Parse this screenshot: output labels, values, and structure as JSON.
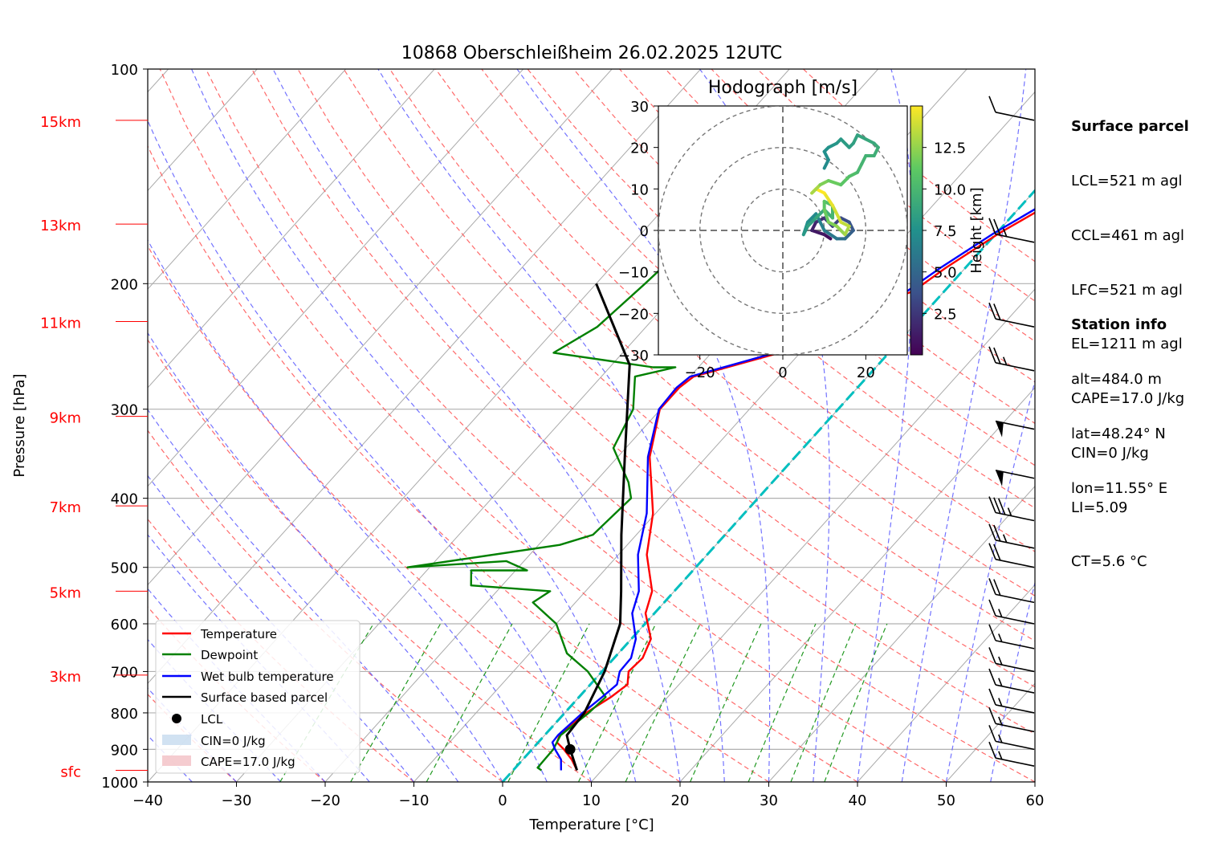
{
  "chart_data": {
    "type": "line",
    "title": "10868 Oberschleißheim 26.02.2025 12UTC",
    "xlabel": "Temperature [°C]",
    "ylabel": "Pressure [hPa]",
    "xlim": [
      -40,
      60
    ],
    "ylim": [
      1000,
      100
    ],
    "y_scale": "log",
    "x_ticks": [
      "−40",
      "−30",
      "−20",
      "−10",
      "0",
      "10",
      "20",
      "30",
      "40",
      "50",
      "60"
    ],
    "y_ticks": [
      {
        "p": 1000,
        "label": "1000"
      },
      {
        "p": 900,
        "label": "900"
      },
      {
        "p": 800,
        "label": "800"
      },
      {
        "p": 700,
        "label": "700"
      },
      {
        "p": 600,
        "label": "600"
      },
      {
        "p": 500,
        "label": "500"
      },
      {
        "p": 400,
        "label": "400"
      },
      {
        "p": 300,
        "label": "300"
      },
      {
        "p": 200,
        "label": "200"
      },
      {
        "p": 100,
        "label": "100"
      }
    ],
    "height_labels": [
      {
        "p": 963,
        "label": "sfc"
      },
      {
        "p": 708,
        "label": "3km"
      },
      {
        "p": 540,
        "label": "5km"
      },
      {
        "p": 410,
        "label": "7km"
      },
      {
        "p": 307,
        "label": "9km"
      },
      {
        "p": 226,
        "label": "11km"
      },
      {
        "p": 165,
        "label": "13km"
      },
      {
        "p": 118,
        "label": "15km"
      }
    ],
    "series": [
      {
        "name": "Temperature",
        "color": "#ff0000",
        "x": [
          7.2,
          5.5,
          3.6,
          2.1,
          1.7,
          2.4,
          3.6,
          4.2,
          3.0,
          3.2,
          2.2,
          -1.0,
          -2.5,
          -6.8,
          -10.3,
          -16.4,
          -20.1,
          -20.1,
          -19.6,
          -12.3,
          -11.0,
          -8.2,
          -3.5,
          -2.2,
          0.3,
          3.0,
          6.0,
          10.5,
          10.2
        ],
        "y": [
          963,
          930,
          900,
          880,
          860,
          800,
          760,
          730,
          700,
          670,
          630,
          580,
          540,
          480,
          420,
          350,
          300,
          280,
          270,
          250,
          237,
          220,
          205,
          190,
          170,
          155,
          140,
          122,
          118
        ]
      },
      {
        "name": "Dewpoint",
        "color": "#008000",
        "x": [
          3.2,
          2.5,
          2.4,
          2.1,
          1.8,
          2.7,
          3.0,
          -1.6,
          -5.8,
          -10.0,
          -14.8,
          -14.0,
          -23.5,
          -25.0,
          -18.7,
          -22.0,
          -32.5,
          -17.6,
          -14.9,
          -14.3,
          -16.2,
          -21.4,
          -23.1,
          -26.2,
          -22.6,
          -25.1,
          -37.8,
          -35.5,
          -34.5,
          -33.9,
          -29.6,
          -25.4,
          -22.4,
          -22.1
        ],
        "y": [
          963,
          955,
          900,
          880,
          860,
          800,
          760,
          700,
          660,
          600,
          560,
          540,
          530,
          505,
          505,
          490,
          500,
          465,
          450,
          400,
          380,
          340,
          300,
          270,
          262,
          262,
          250,
          230,
          200,
          180,
          160,
          135,
          118,
          117
        ]
      },
      {
        "name": "Wet bulb temperature",
        "color": "#0000ff",
        "x": [
          5.4,
          4.3,
          2.6,
          1.6,
          1.5,
          2.0,
          2.6,
          3.0,
          2.0,
          1.9,
          0.5,
          -2.5,
          -4.0,
          -7.8,
          -11.0,
          -16.6,
          -20.2,
          -20.4,
          -20.0,
          -12.8,
          -11.4,
          -8.9,
          -4.2,
          -2.8,
          -0.3,
          2.3,
          5.5,
          10.2,
          9.9
        ],
        "y": [
          963,
          930,
          900,
          880,
          860,
          800,
          760,
          730,
          700,
          670,
          630,
          580,
          540,
          480,
          420,
          350,
          300,
          280,
          270,
          250,
          237,
          220,
          205,
          190,
          170,
          155,
          140,
          122,
          118
        ]
      },
      {
        "name": "Surface based parcel",
        "color": "#000000",
        "x": [
          7.2,
          4.3,
          2.5,
          2.2,
          0.3,
          -2.8,
          -6.0,
          -11.7,
          -19.2,
          -28.0,
          -40.0
        ],
        "y": [
          963,
          900,
          860,
          800,
          700,
          600,
          540,
          450,
          350,
          260,
          200
        ]
      }
    ],
    "lcl": {
      "name": "LCL",
      "x": 4.3,
      "p": 900
    },
    "cin_label": "CIN=0 J/kg",
    "cape_label": "CAPE=17.0 J/kg",
    "legend": {
      "position": "lower-left"
    },
    "hodograph": {
      "title": "Hodograph [m/s]",
      "xlim": [
        -30,
        30
      ],
      "ylim": [
        -30,
        30
      ],
      "x_ticks": [
        "−20",
        "0",
        "20"
      ],
      "y_ticks": [
        "30",
        "20",
        "10",
        "0",
        "−10",
        "−20",
        "−30"
      ],
      "rings": [
        10,
        20,
        30
      ],
      "colorbar_label": "Height [km]",
      "colorbar_ticks": [
        "2.5",
        "5.0",
        "7.5",
        "10.0",
        "12.5"
      ],
      "u": [
        11.5,
        10,
        7,
        8,
        10,
        12,
        14,
        16,
        17,
        16,
        15,
        13,
        10,
        8,
        6,
        5,
        6,
        8,
        10,
        12,
        12,
        10,
        10,
        11,
        13,
        15,
        16,
        14,
        12,
        10,
        8,
        7,
        9,
        11,
        14,
        16,
        18,
        19,
        20,
        22,
        23,
        22,
        20,
        18,
        17,
        16,
        14,
        13,
        11,
        10,
        11,
        10
      ],
      "v": [
        -2,
        -1,
        0,
        2,
        3,
        1,
        3,
        2,
        0,
        -1,
        -2,
        -2,
        0,
        4,
        2,
        -1,
        1,
        3,
        5,
        3,
        6,
        7,
        5,
        2,
        1,
        -1,
        1,
        2,
        6,
        9,
        10,
        9,
        11,
        12,
        11,
        13,
        14,
        16,
        18,
        18,
        20,
        21,
        22,
        23,
        21,
        20,
        22,
        21,
        20,
        19,
        17,
        15
      ],
      "h": [
        0.5,
        1.0,
        1.5,
        2.0,
        2.5,
        3.0,
        3.5,
        4.0,
        4.5,
        5.0,
        5.5,
        6.0,
        6.5,
        7.0,
        7.5,
        8.0,
        8.5,
        9.0,
        9.5,
        10.0,
        10.5,
        11.0,
        11.5,
        12.0,
        12.5,
        13.0,
        13.5,
        14.0,
        14.5,
        15.0,
        14.0,
        13.0,
        12.0,
        11.5,
        11.0,
        10.5,
        10.0,
        9.8,
        9.6,
        9.4,
        9.2,
        9.0,
        8.8,
        8.6,
        8.4,
        8.2,
        8.0,
        7.8,
        7.6,
        7.4,
        7.2,
        7.0
      ]
    },
    "wind_barbs": [
      {
        "p": 118,
        "speed": 10
      },
      {
        "p": 175,
        "speed": 25
      },
      {
        "p": 230,
        "speed": 20
      },
      {
        "p": 265,
        "speed": 25
      },
      {
        "p": 320,
        "speed": 50
      },
      {
        "p": 375,
        "speed": 50
      },
      {
        "p": 430,
        "speed": 35
      },
      {
        "p": 470,
        "speed": 25
      },
      {
        "p": 500,
        "speed": 20
      },
      {
        "p": 560,
        "speed": 20
      },
      {
        "p": 600,
        "speed": 15
      },
      {
        "p": 650,
        "speed": 15
      },
      {
        "p": 700,
        "speed": 15
      },
      {
        "p": 750,
        "speed": 15
      },
      {
        "p": 800,
        "speed": 15
      },
      {
        "p": 850,
        "speed": 15
      },
      {
        "p": 900,
        "speed": 15
      },
      {
        "p": 950,
        "speed": 15
      }
    ]
  },
  "side_panel": {
    "surface_header": "Surface parcel",
    "surface_lines": [
      "LCL=521 m agl",
      "CCL=461 m agl",
      "LFC=521 m agl",
      "EL=1211 m agl",
      "CAPE=17.0 J/kg",
      "CIN=0 J/kg",
      "LI=5.09",
      "CT=5.6 °C"
    ],
    "station_header": "Station info",
    "station_lines": [
      "alt=484.0 m",
      "lat=48.24° N",
      "lon=11.55° E"
    ]
  },
  "colors": {
    "temperature": "#ff0000",
    "dewpoint": "#008000",
    "wetbulb": "#0000ff",
    "parcel": "#000000",
    "height_labels": "#ff0000",
    "freezing_line": "#00bfbf"
  }
}
